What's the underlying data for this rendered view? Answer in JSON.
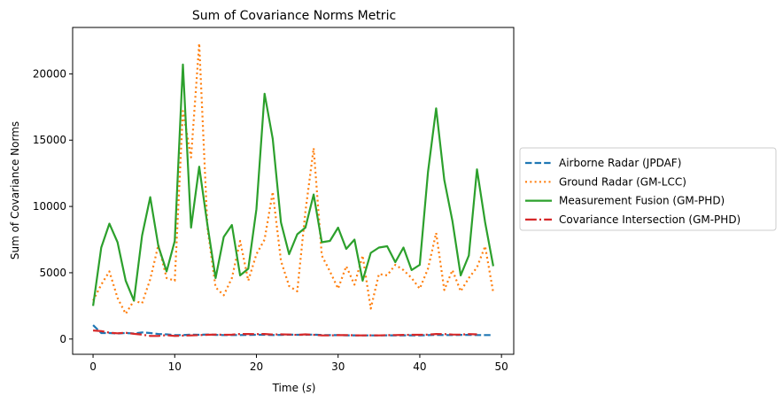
{
  "chart_data": {
    "type": "line",
    "title": "Sum of Covariance Norms Metric",
    "xlabel": "Time (s)",
    "ylabel": "Sum of Covariance Norms",
    "xlim": [
      -2.5,
      51.5
    ],
    "ylim": [
      -1150,
      23500
    ],
    "xticks": [
      0,
      10,
      20,
      30,
      40,
      50
    ],
    "yticks": [
      0,
      5000,
      10000,
      15000,
      20000
    ],
    "grid": false,
    "legend_position": "center-right-outside",
    "x": [
      0,
      1,
      2,
      3,
      4,
      5,
      6,
      7,
      8,
      9,
      10,
      11,
      12,
      13,
      14,
      15,
      16,
      17,
      18,
      19,
      20,
      21,
      22,
      23,
      24,
      25,
      26,
      27,
      28,
      29,
      30,
      31,
      32,
      33,
      34,
      35,
      36,
      37,
      38,
      39,
      40,
      41,
      42,
      43,
      44,
      45,
      46,
      47,
      48,
      49
    ],
    "series": [
      {
        "name": "Airborne Radar (JPDAF)",
        "color": "#1f77b4",
        "style": "dashed",
        "values": [
          1050,
          450,
          450,
          420,
          450,
          420,
          500,
          450,
          380,
          350,
          300,
          300,
          330,
          320,
          340,
          310,
          300,
          300,
          300,
          310,
          320,
          320,
          300,
          310,
          330,
          320,
          320,
          330,
          300,
          290,
          290,
          280,
          280,
          270,
          270,
          270,
          280,
          270,
          280,
          280,
          280,
          290,
          310,
          300,
          300,
          310,
          310,
          300,
          300,
          300
        ]
      },
      {
        "name": "Ground Radar (GM-LCC)",
        "color": "#ff7f0e",
        "style": "dotted",
        "values": [
          2900,
          4100,
          5100,
          3100,
          1900,
          2900,
          2700,
          4500,
          7100,
          4600,
          4400,
          17200,
          13700,
          22300,
          8400,
          3900,
          3300,
          4600,
          7400,
          4400,
          6400,
          7500,
          11100,
          5900,
          4000,
          3600,
          9600,
          14400,
          6300,
          5100,
          3800,
          5500,
          4100,
          6300,
          2300,
          4900,
          4800,
          5600,
          5200,
          4600,
          3800,
          5300,
          8000,
          3700,
          5200,
          3600,
          4600,
          5400,
          7000,
          3500
        ]
      },
      {
        "name": "Measurement Fusion (GM-PHD)",
        "color": "#2ca02c",
        "style": "solid",
        "values": [
          2500,
          6900,
          8700,
          7300,
          4400,
          2900,
          7800,
          10700,
          7000,
          5100,
          7400,
          20700,
          8400,
          13000,
          8600,
          4600,
          7700,
          8600,
          4800,
          5300,
          9800,
          18500,
          15100,
          8800,
          6400,
          7900,
          8400,
          10900,
          7300,
          7400,
          8400,
          6800,
          7500,
          4400,
          6500,
          6900,
          7000,
          5800,
          6900,
          5200,
          5600,
          12600,
          17400,
          12000,
          8900,
          4800,
          6300,
          12800,
          8800,
          5500
        ]
      },
      {
        "name": "Covariance Intersection (GM-PHD)",
        "color": "#d62728",
        "style": "dashdot",
        "values": [
          650,
          600,
          480,
          430,
          470,
          390,
          330,
          230,
          230,
          290,
          230,
          260,
          270,
          290,
          320,
          340,
          320,
          330,
          380,
          380,
          370,
          380,
          340,
          350,
          340,
          310,
          350,
          320,
          280,
          270,
          290,
          300,
          280,
          270,
          280,
          270,
          290,
          300,
          310,
          320,
          320,
          330,
          380,
          370,
          340,
          330,
          370,
          350,
          null,
          null
        ]
      }
    ]
  }
}
